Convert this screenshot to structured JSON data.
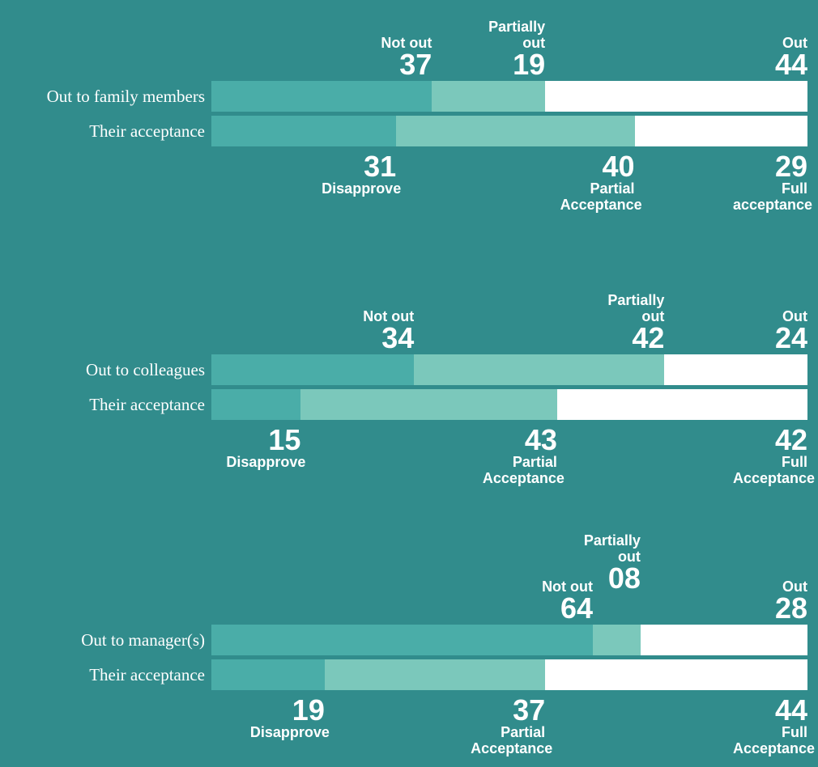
{
  "chart_data": {
    "type": "stacked-bar",
    "xlim": [
      0,
      100
    ],
    "colors": [
      "#4aada8",
      "#7bc8bb",
      "#ffffff"
    ],
    "groups": [
      {
        "bars": [
          {
            "label": "Out to family members",
            "names": [
              "Not out",
              "Partially out",
              "Out"
            ],
            "values": [
              37,
              19,
              44
            ],
            "value_labels": [
              "37",
              "19",
              "44"
            ]
          },
          {
            "label": "Their acceptance",
            "names": [
              "Disapprove",
              "Partial Acceptance",
              "Full acceptance"
            ],
            "values": [
              31,
              40,
              29
            ],
            "value_labels": [
              "31",
              "40",
              "29"
            ]
          }
        ]
      },
      {
        "bars": [
          {
            "label": "Out to colleagues",
            "names": [
              "Not out",
              "Partially out",
              "Out"
            ],
            "values": [
              34,
              42,
              24
            ],
            "value_labels": [
              "34",
              "42",
              "24"
            ]
          },
          {
            "label": "Their acceptance",
            "names": [
              "Disapprove",
              "Partial Acceptance",
              "Full Acceptance"
            ],
            "values": [
              15,
              43,
              42
            ],
            "value_labels": [
              "15",
              "43",
              "42"
            ]
          }
        ]
      },
      {
        "bars": [
          {
            "label": "Out to manager(s)",
            "names": [
              "Not out",
              "Partially out",
              "Out"
            ],
            "values": [
              64,
              8,
              28
            ],
            "value_labels": [
              "64",
              "08",
              "28"
            ]
          },
          {
            "label": "Their acceptance",
            "names": [
              "Disapprove",
              "Partial Acceptance",
              "Full Acceptance"
            ],
            "values": [
              19,
              37,
              44
            ],
            "value_labels": [
              "19",
              "37",
              "44"
            ]
          }
        ]
      }
    ]
  }
}
